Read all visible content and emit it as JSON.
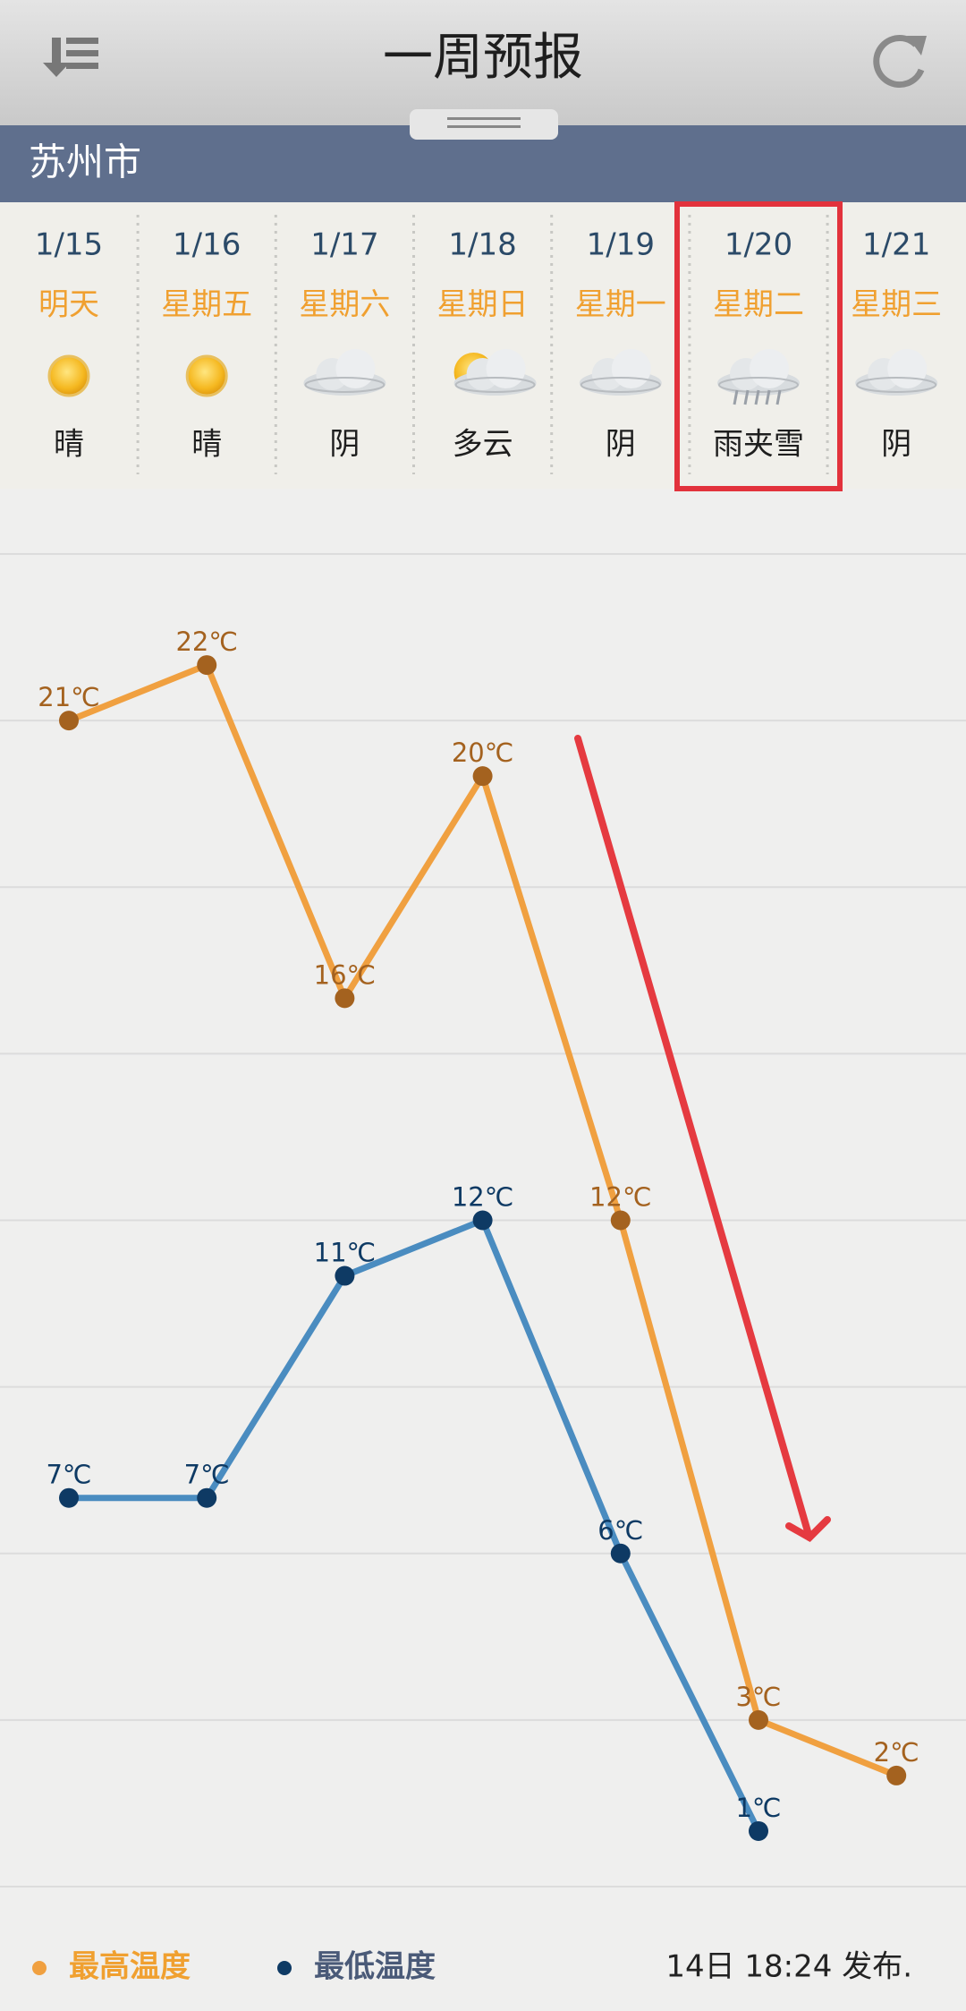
{
  "header": {
    "title": "一周预报"
  },
  "city": "苏州市",
  "days": [
    {
      "weekday": "明天",
      "weather": "晴"
    },
    {
      "weekday": "星期五",
      "weather": "晴"
    },
    {
      "weekday": "星期六",
      "weather": "阴"
    },
    {
      "weekday": "星期日",
      "weather": "多云"
    },
    {
      "weekday": "星期一",
      "weather": "阴"
    },
    {
      "weekday": "星期二",
      "weather": "雨夹雪"
    },
    {
      "weekday": "星期三",
      "weather": "阴"
    }
  ],
  "chart_data": {
    "type": "line",
    "categories": [
      "1/15",
      "1/16",
      "1/17",
      "1/18",
      "1/19",
      "1/20",
      "1/21"
    ],
    "series": [
      {
        "name": "最高温度",
        "color": "#f0a040",
        "marker_color": "#a4621f",
        "legend_color": "#f0a030",
        "values": [
          21,
          22,
          16,
          20,
          12,
          3,
          2
        ],
        "value_labels": [
          "21℃",
          "22℃",
          "16℃",
          "20℃",
          "12℃",
          "3℃",
          "2℃"
        ]
      },
      {
        "name": "最低温度",
        "color": "#4a8cc0",
        "marker_color": "#0e3a64",
        "legend_color": "#4a5a78",
        "values": [
          7,
          7,
          11,
          12,
          6,
          1,
          null
        ],
        "value_labels": [
          "7℃",
          "7℃",
          "11℃",
          "12℃",
          "6℃",
          "1℃",
          null
        ]
      }
    ],
    "ylim": [
      0,
      24
    ],
    "yticks": [
      0,
      3,
      6,
      9,
      12,
      15,
      18,
      21,
      24
    ],
    "grid": true
  },
  "footer": "14日 18:24 发布."
}
